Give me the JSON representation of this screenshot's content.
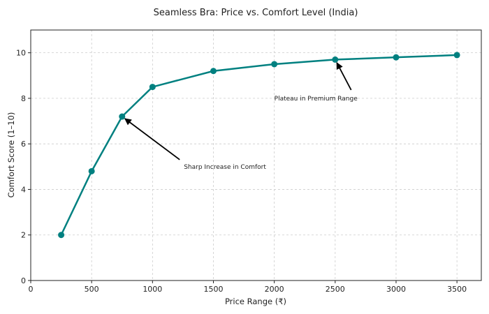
{
  "chart_data": {
    "type": "line",
    "title": "Seamless Bra: Price vs. Comfort Level (India)",
    "xlabel": "Price Range (₹)",
    "ylabel": "Comfort Score (1–10)",
    "xlim": [
      0,
      3700
    ],
    "ylim": [
      0,
      11
    ],
    "xticks": [
      0,
      500,
      1000,
      1500,
      2000,
      2500,
      3000,
      3500
    ],
    "yticks": [
      0,
      2,
      4,
      6,
      8,
      10
    ],
    "grid": true,
    "legend": null,
    "series": [
      {
        "name": "Comfort Score",
        "color": "#008080",
        "x": [
          250,
          500,
          750,
          1000,
          1500,
          2000,
          2500,
          3000,
          3500
        ],
        "y": [
          2.0,
          4.8,
          7.2,
          8.5,
          9.2,
          9.5,
          9.7,
          9.8,
          9.9
        ]
      }
    ],
    "annotations": [
      {
        "text": "Sharp Increase in Comfort",
        "xy": [
          750,
          7.2
        ],
        "xytext": [
          1200,
          5.0
        ]
      },
      {
        "text": "Plateau in Premium Range",
        "xy": [
          2500,
          9.7
        ],
        "xytext": [
          2000,
          8.0
        ]
      }
    ]
  }
}
